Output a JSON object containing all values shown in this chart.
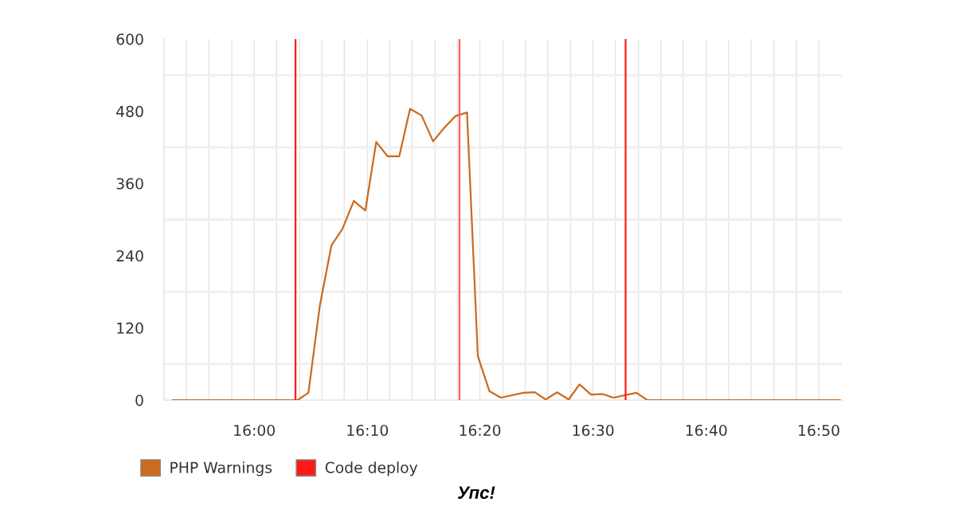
{
  "chart_data": {
    "type": "line",
    "x": [
      15.88,
      15.897,
      15.914,
      15.93,
      15.947,
      15.964,
      15.98,
      15.997,
      16.014,
      16.03,
      16.047,
      16.064,
      16.08,
      16.097,
      16.114,
      16.13,
      16.147,
      16.164,
      16.18,
      16.197,
      16.214,
      16.23,
      16.247,
      16.264,
      16.28,
      16.297,
      16.314,
      16.33,
      16.347,
      16.364,
      16.38,
      16.397,
      16.414,
      16.43,
      16.447,
      16.464,
      16.48,
      16.497,
      16.514,
      16.53,
      16.547,
      16.564,
      16.58,
      16.597,
      16.614,
      16.63,
      16.647,
      16.664,
      16.68,
      16.697,
      16.714,
      16.73,
      16.747,
      16.764,
      16.78,
      16.797,
      16.814,
      16.83,
      16.847,
      16.864
    ],
    "series": [
      {
        "name": "PHP Warnings",
        "color": "#cc6a1e",
        "values": [
          0,
          0,
          0,
          0,
          0,
          0,
          0,
          0,
          0,
          0,
          0,
          0,
          12,
          158,
          257,
          284,
          331,
          315,
          429,
          405,
          405,
          484,
          473,
          430,
          452,
          472,
          478,
          73,
          15,
          4,
          8,
          12,
          13,
          1,
          13,
          1,
          26,
          9,
          10,
          4,
          8,
          12,
          0,
          0,
          0,
          0,
          0,
          0,
          0,
          0,
          0,
          0,
          0,
          0,
          0,
          0,
          0,
          0,
          0,
          0
        ]
      }
    ],
    "ref_lines": [
      {
        "axis": "x",
        "value": 16.061,
        "label": "Code deploy",
        "color": "#ff1a1a"
      },
      {
        "axis": "x",
        "value": 16.303,
        "color": "#ff6060"
      },
      {
        "axis": "x",
        "value": 16.548,
        "color": "#ff1a1a"
      }
    ],
    "annotations": [
      "Упс!"
    ],
    "xlim": [
      15.867,
      16.867
    ],
    "xticks": [
      {
        "value": 15.867,
        "label": null
      },
      {
        "value": 15.9,
        "label": null
      },
      {
        "value": 15.933,
        "label": null
      },
      {
        "value": 15.967,
        "label": null
      },
      {
        "value": 16.0,
        "label": "16:00"
      },
      {
        "value": 16.033,
        "label": null
      },
      {
        "value": 16.067,
        "label": null
      },
      {
        "value": 16.1,
        "label": null
      },
      {
        "value": 16.133,
        "label": null
      },
      {
        "value": 16.167,
        "label": "16:10"
      },
      {
        "value": 16.2,
        "label": null
      },
      {
        "value": 16.233,
        "label": null
      },
      {
        "value": 16.267,
        "label": null
      },
      {
        "value": 16.3,
        "label": null
      },
      {
        "value": 16.333,
        "label": "16:20"
      },
      {
        "value": 16.367,
        "label": null
      },
      {
        "value": 16.4,
        "label": null
      },
      {
        "value": 16.433,
        "label": null
      },
      {
        "value": 16.467,
        "label": null
      },
      {
        "value": 16.5,
        "label": "16:30"
      },
      {
        "value": 16.533,
        "label": null
      },
      {
        "value": 16.567,
        "label": null
      },
      {
        "value": 16.6,
        "label": null
      },
      {
        "value": 16.633,
        "label": null
      },
      {
        "value": 16.667,
        "label": "16:40"
      },
      {
        "value": 16.7,
        "label": null
      },
      {
        "value": 16.733,
        "label": null
      },
      {
        "value": 16.767,
        "label": null
      },
      {
        "value": 16.8,
        "label": null
      },
      {
        "value": 16.833,
        "label": "16:50"
      }
    ],
    "ylim": [
      0,
      600
    ],
    "yticks": [
      0,
      {
        "value": 60,
        "label": null
      },
      120,
      {
        "value": 180,
        "label": null
      },
      240,
      {
        "value": 300,
        "label": null
      },
      360,
      {
        "value": 420,
        "label": null
      },
      480,
      {
        "value": 540,
        "label": null
      },
      600
    ],
    "grid": true,
    "legend": "bottom",
    "marker": "none",
    "line_style": "solid"
  }
}
